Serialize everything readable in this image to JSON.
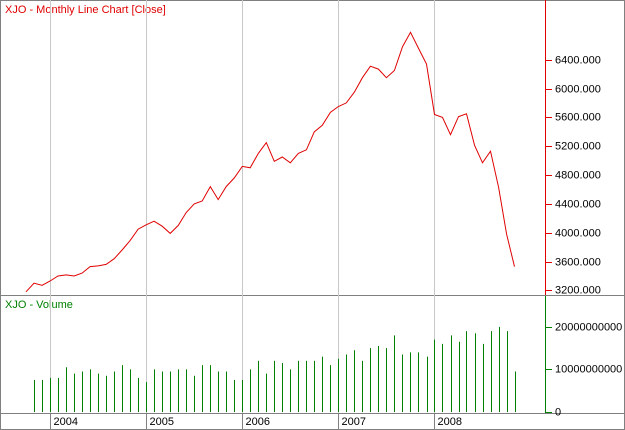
{
  "chart_data": [
    {
      "type": "line",
      "title": "XJO - Monthly Line Chart [Close]",
      "color": "#e00000",
      "x": [
        2003.75,
        2003.833,
        2003.917,
        2004,
        2004.083,
        2004.167,
        2004.25,
        2004.333,
        2004.417,
        2004.5,
        2004.583,
        2004.667,
        2004.75,
        2004.833,
        2004.917,
        2005,
        2005.083,
        2005.167,
        2005.25,
        2005.333,
        2005.417,
        2005.5,
        2005.583,
        2005.667,
        2005.75,
        2005.833,
        2005.917,
        2006,
        2006.083,
        2006.167,
        2006.25,
        2006.333,
        2006.417,
        2006.5,
        2006.583,
        2006.667,
        2006.75,
        2006.833,
        2006.917,
        2007,
        2007.083,
        2007.167,
        2007.25,
        2007.333,
        2007.417,
        2007.5,
        2007.583,
        2007.667,
        2007.75,
        2007.833,
        2007.917,
        2008,
        2008.083,
        2008.167,
        2008.25,
        2008.333,
        2008.417,
        2008.5,
        2008.583,
        2008.667,
        2008.75,
        2008.833
      ],
      "series": [
        {
          "name": "Close",
          "color": "#e00000",
          "values": [
            3180,
            3300,
            3270,
            3330,
            3400,
            3415,
            3400,
            3440,
            3530,
            3540,
            3560,
            3640,
            3760,
            3890,
            4050,
            4110,
            4160,
            4090,
            3990,
            4100,
            4280,
            4400,
            4440,
            4640,
            4460,
            4640,
            4760,
            4920,
            4900,
            5100,
            5250,
            4990,
            5050,
            4970,
            5100,
            5150,
            5400,
            5490,
            5670,
            5750,
            5800,
            5950,
            6150,
            6310,
            6270,
            6150,
            6250,
            6580,
            6780,
            6560,
            6340,
            5640,
            5600,
            5360,
            5610,
            5650,
            5210,
            4970,
            5130,
            4630,
            3980,
            3530
          ]
        }
      ],
      "xlim": [
        2003.5,
        2009.15
      ],
      "ylim": [
        3150,
        7200
      ],
      "yticks": [
        {
          "value": 3200,
          "label": "3200.000"
        },
        {
          "value": 3600,
          "label": "3600.000"
        },
        {
          "value": 4000,
          "label": "4000.000"
        },
        {
          "value": 4400,
          "label": "4400.000"
        },
        {
          "value": 4800,
          "label": "4800.000"
        },
        {
          "value": 5200,
          "label": "5200.000"
        },
        {
          "value": 5600,
          "label": "5600.000"
        },
        {
          "value": 6000,
          "label": "6000.000"
        },
        {
          "value": 6400,
          "label": "6400.000"
        }
      ],
      "xticks": [
        {
          "value": 2004,
          "label": "2004"
        },
        {
          "value": 2005,
          "label": "2005"
        },
        {
          "value": 2006,
          "label": "2006"
        },
        {
          "value": 2007,
          "label": "2007"
        },
        {
          "value": 2008,
          "label": "2008"
        }
      ]
    },
    {
      "type": "bar",
      "title": "XJO - Volume",
      "color": "#008000",
      "x": [
        2003.75,
        2003.833,
        2003.917,
        2004,
        2004.083,
        2004.167,
        2004.25,
        2004.333,
        2004.417,
        2004.5,
        2004.583,
        2004.667,
        2004.75,
        2004.833,
        2004.917,
        2005,
        2005.083,
        2005.167,
        2005.25,
        2005.333,
        2005.417,
        2005.5,
        2005.583,
        2005.667,
        2005.75,
        2005.833,
        2005.917,
        2006,
        2006.083,
        2006.167,
        2006.25,
        2006.333,
        2006.417,
        2006.5,
        2006.583,
        2006.667,
        2006.75,
        2006.833,
        2006.917,
        2007,
        2007.083,
        2007.167,
        2007.25,
        2007.333,
        2007.417,
        2007.5,
        2007.583,
        2007.667,
        2007.75,
        2007.833,
        2007.917,
        2008,
        2008.083,
        2008.167,
        2008.25,
        2008.333,
        2008.417,
        2008.5,
        2008.583,
        2008.667,
        2008.75,
        2008.833
      ],
      "series": [
        {
          "name": "Volume",
          "color": "#008000",
          "values": [
            null,
            7500000000,
            7500000000,
            8000000000,
            8000000000,
            10500000000,
            9000000000,
            9500000000,
            10000000000,
            9000000000,
            8500000000,
            9500000000,
            11000000000,
            10000000000,
            8000000000,
            7000000000,
            10000000000,
            9500000000,
            9500000000,
            10000000000,
            10000000000,
            8500000000,
            11000000000,
            11000000000,
            9500000000,
            9500000000,
            7500000000,
            7500000000,
            10000000000,
            12000000000,
            9000000000,
            12000000000,
            11500000000,
            10000000000,
            12000000000,
            12000000000,
            12000000000,
            13000000000,
            11000000000,
            12500000000,
            13500000000,
            14500000000,
            12000000000,
            15000000000,
            15500000000,
            15000000000,
            18000000000,
            13500000000,
            14000000000,
            14000000000,
            13000000000,
            17000000000,
            16000000000,
            18000000000,
            16500000000,
            19000000000,
            18500000000,
            16000000000,
            19000000000,
            20000000000,
            19000000000,
            9500000000
          ]
        }
      ],
      "xlim": [
        2003.5,
        2009.15
      ],
      "ylim": [
        0,
        27000000000
      ],
      "yticks": [
        0,
        10000000000,
        20000000000
      ],
      "xticks": [
        {
          "value": 2004,
          "label": "2004"
        },
        {
          "value": 2005,
          "label": "2005"
        },
        {
          "value": 2006,
          "label": "2006"
        },
        {
          "value": 2007,
          "label": "2007"
        },
        {
          "value": 2008,
          "label": "2008"
        }
      ]
    }
  ]
}
